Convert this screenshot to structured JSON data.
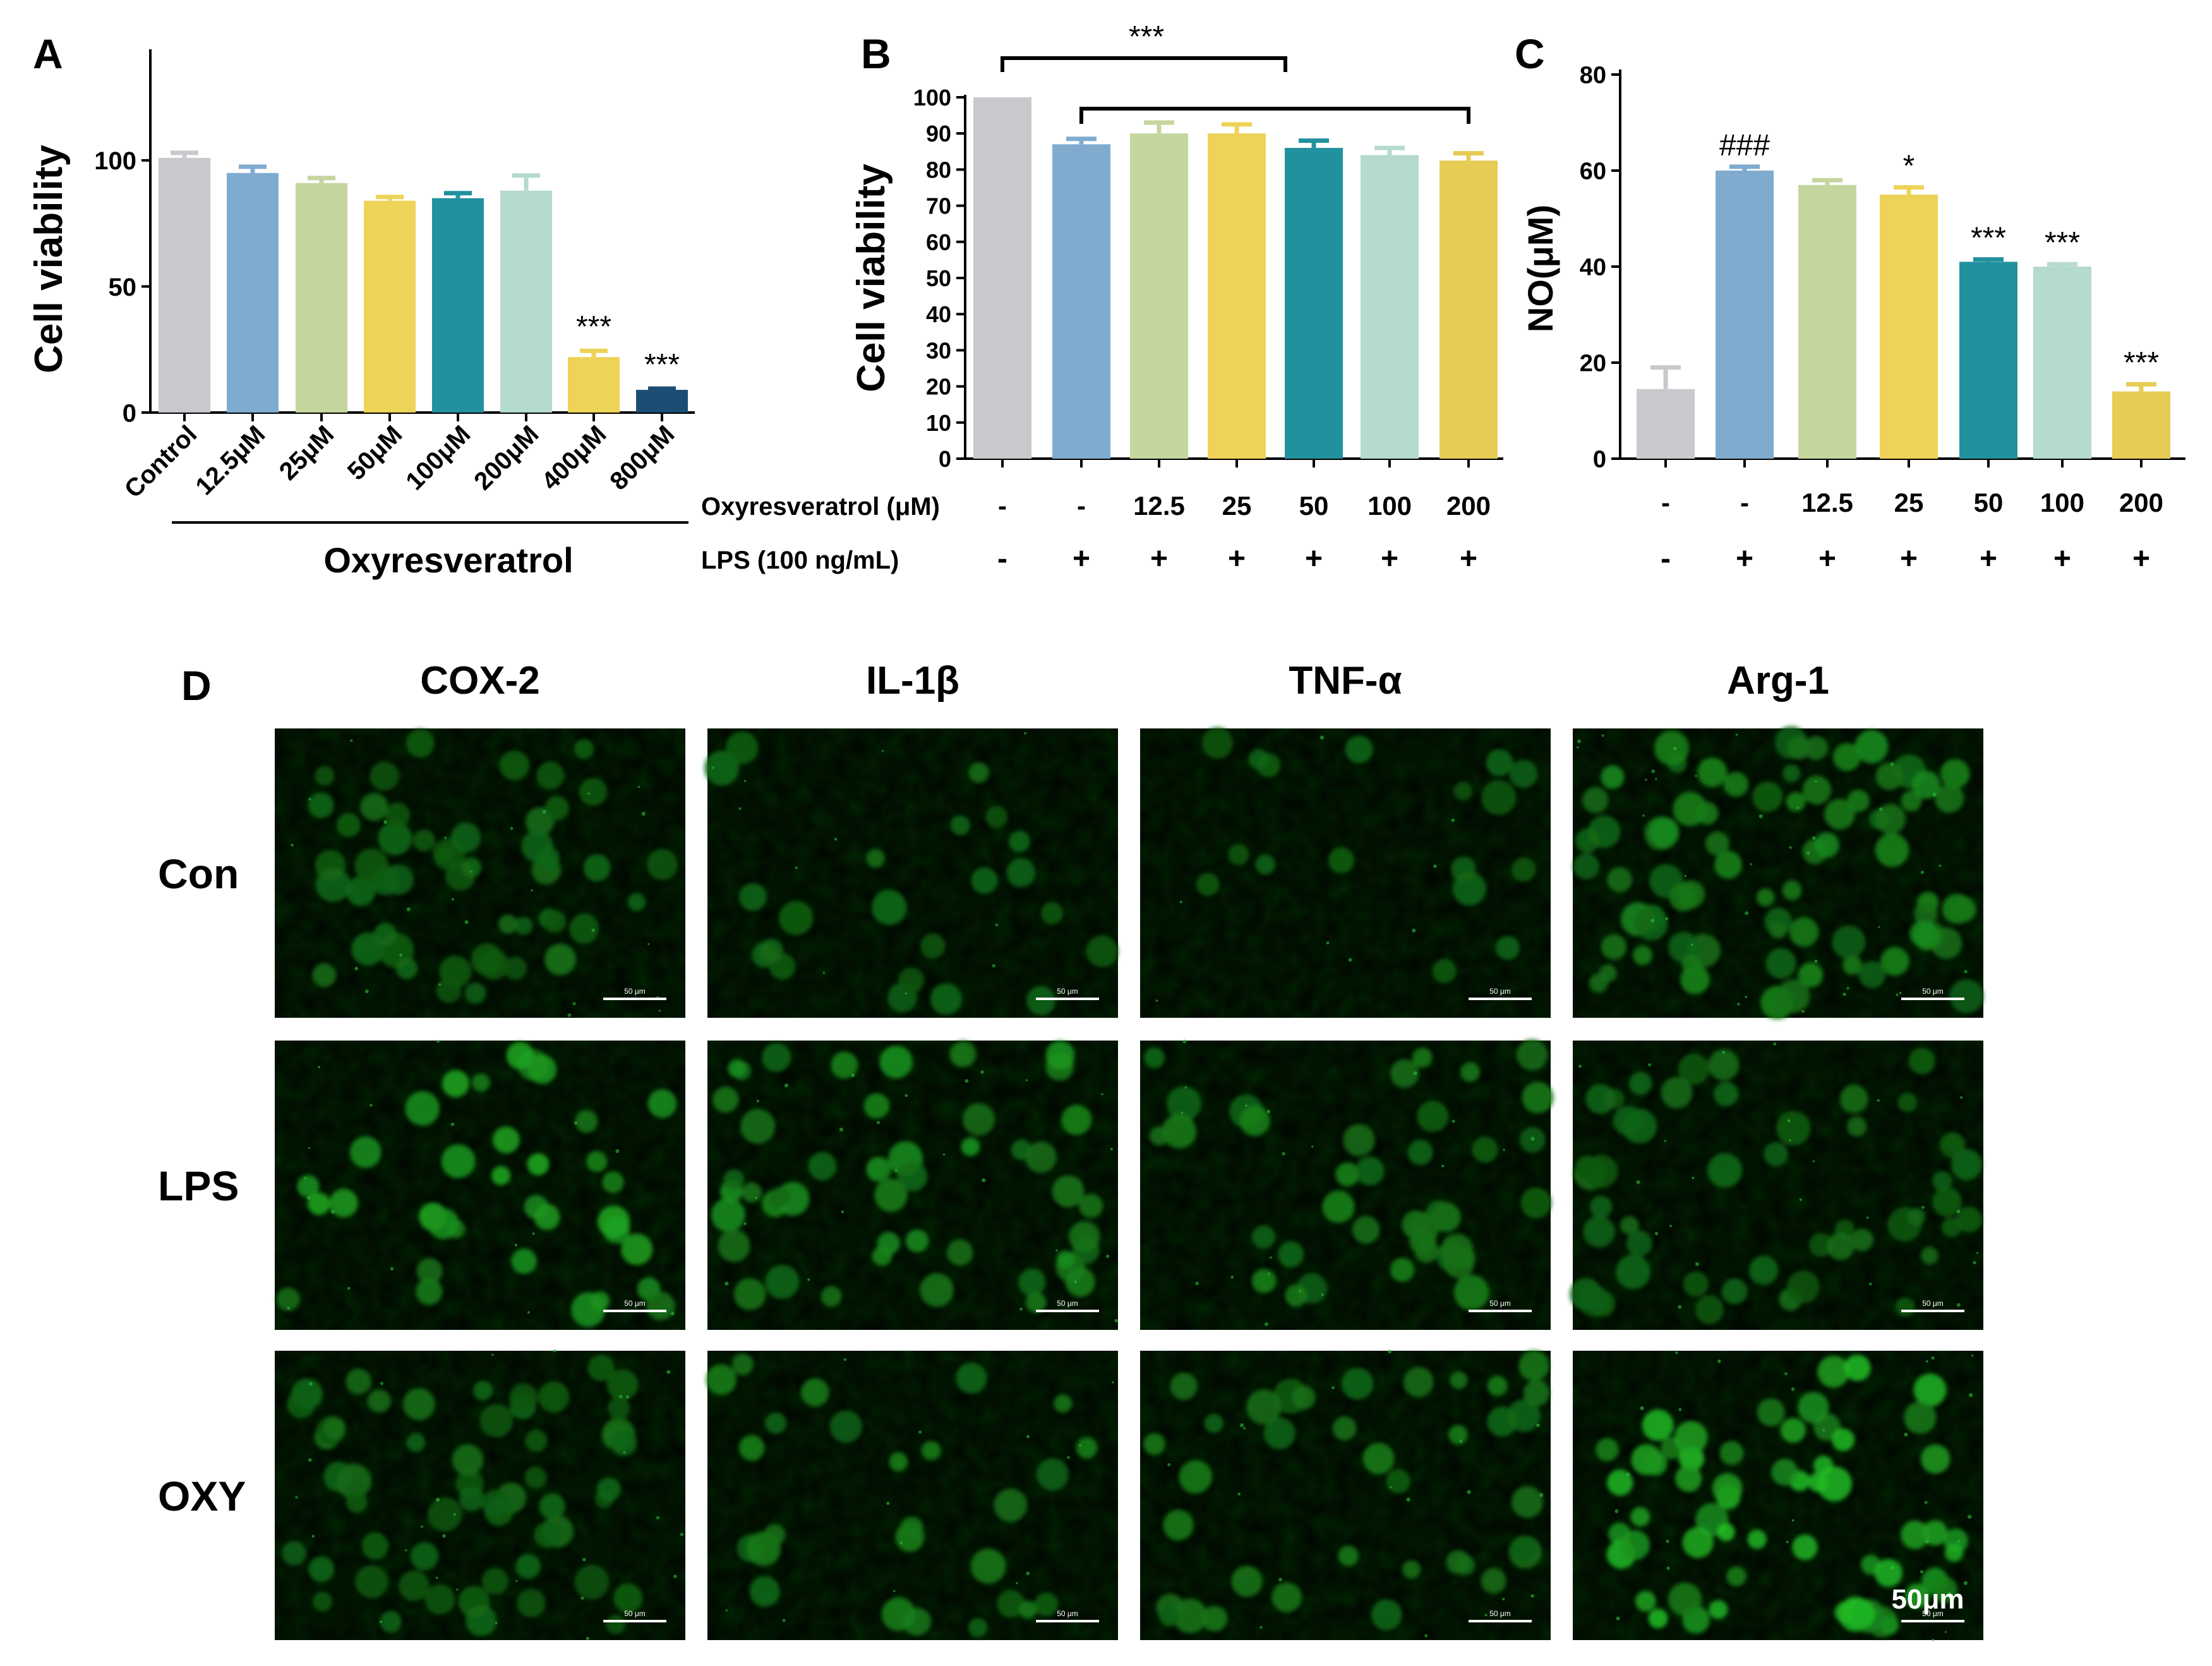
{
  "colors": {
    "control": "#c9c8cd",
    "light_blue": "#7fabcf",
    "sage": "#c4d69e",
    "yellow": "#edd357",
    "teal": "#21919e",
    "mint": "#b5dbcc",
    "dark_navy": "#1b4d75",
    "fluorescence": "#2fbf3a"
  },
  "panel_a": {
    "letter": "A",
    "ylabel": "Cell viability",
    "group_label": "Oxyresveratrol"
  },
  "panel_b": {
    "letter": "B",
    "ylabel": "Cell viability",
    "row1_label": "Oxyresveratrol (μM)",
    "row2_label": "LPS (100 ng/mL)",
    "row1": [
      "-",
      "-",
      "12.5",
      "25",
      "50",
      "100",
      "200"
    ],
    "row2": [
      "-",
      "+",
      "+",
      "+",
      "+",
      "+",
      "+"
    ],
    "sig_bracket": "***"
  },
  "panel_c": {
    "letter": "C",
    "ylabel": "NO(μM)",
    "row1": [
      "-",
      "-",
      "12.5",
      "25",
      "50",
      "100",
      "200"
    ],
    "row2": [
      "-",
      "+",
      "+",
      "+",
      "+",
      "+",
      "+"
    ]
  },
  "panel_d": {
    "letter": "D",
    "columns": [
      "COX-2",
      "IL-1β",
      "TNF-α",
      "Arg-1"
    ],
    "rows": [
      "Con",
      "LPS",
      "OXY"
    ],
    "scale_small": "50 μm",
    "scale_big": "50μm",
    "density": [
      [
        0.42,
        0.18,
        0.14,
        0.62
      ],
      [
        0.28,
        0.4,
        0.32,
        0.4
      ],
      [
        0.45,
        0.22,
        0.3,
        0.48
      ]
    ],
    "brightness": [
      [
        0.34,
        0.36,
        0.3,
        0.55
      ],
      [
        0.75,
        0.62,
        0.52,
        0.36
      ],
      [
        0.36,
        0.48,
        0.46,
        0.9
      ]
    ]
  },
  "chart_data": [
    {
      "type": "bar",
      "panel": "A",
      "title": "",
      "xlabel": "Oxyresveratrol",
      "ylabel": "Cell viability",
      "ylim": [
        0,
        120
      ],
      "yticks": [
        0,
        50,
        100
      ],
      "categories": [
        "Control",
        "12.5μM",
        "25μM",
        "50μM",
        "100μM",
        "200μM",
        "400μM",
        "800μM"
      ],
      "values": [
        101,
        95,
        91,
        84,
        85,
        88,
        22,
        9
      ],
      "errors": [
        2,
        2.5,
        2,
        1.5,
        2,
        6,
        2.5,
        0.5
      ],
      "annotations": [
        "",
        "",
        "",
        "",
        "",
        "",
        "***",
        "***"
      ],
      "colors": [
        "#c9c8cd",
        "#7fabcf",
        "#c4d69e",
        "#edd357",
        "#21919e",
        "#b5dbcc",
        "#edd357",
        "#1b4d75"
      ],
      "grid": false,
      "legend": "none"
    },
    {
      "type": "bar",
      "panel": "B",
      "title": "",
      "ylabel": "Cell viability",
      "ylim": [
        0,
        100
      ],
      "yticks": [
        0,
        10,
        20,
        30,
        40,
        50,
        60,
        70,
        80,
        90,
        100
      ],
      "categories": [
        "-/-",
        "-/+",
        "12.5/+",
        "25/+",
        "50/+",
        "100/+",
        "200/+"
      ],
      "values": [
        100,
        87,
        90,
        90,
        86,
        84,
        82.5
      ],
      "errors": [
        0,
        1.5,
        3,
        2.5,
        2,
        2,
        2
      ],
      "annotations": [
        "***"
      ],
      "colors": [
        "#c9c8cd",
        "#7fabcf",
        "#c4d69e",
        "#edd357",
        "#21919e",
        "#b5dbcc",
        "#e6cb55"
      ],
      "grid": false,
      "legend": "none"
    },
    {
      "type": "bar",
      "panel": "C",
      "title": "",
      "ylabel": "NO(μM)",
      "ylim": [
        0,
        80
      ],
      "yticks": [
        0,
        20,
        40,
        60,
        80
      ],
      "categories": [
        "-/-",
        "-/+",
        "12.5/+",
        "25/+",
        "50/+",
        "100/+",
        "200/+"
      ],
      "values": [
        14.5,
        60,
        57,
        55,
        41,
        40,
        14
      ],
      "errors": [
        4.5,
        0.8,
        1,
        1.5,
        0.5,
        0.5,
        1.5
      ],
      "annotations": [
        "",
        "###",
        "",
        "*",
        "***",
        "***",
        "***"
      ],
      "colors": [
        "#c9c8cd",
        "#7fabcf",
        "#c4d69e",
        "#edd357",
        "#21919e",
        "#b5dbcc",
        "#e6cb55"
      ],
      "grid": false,
      "legend": "none"
    }
  ]
}
